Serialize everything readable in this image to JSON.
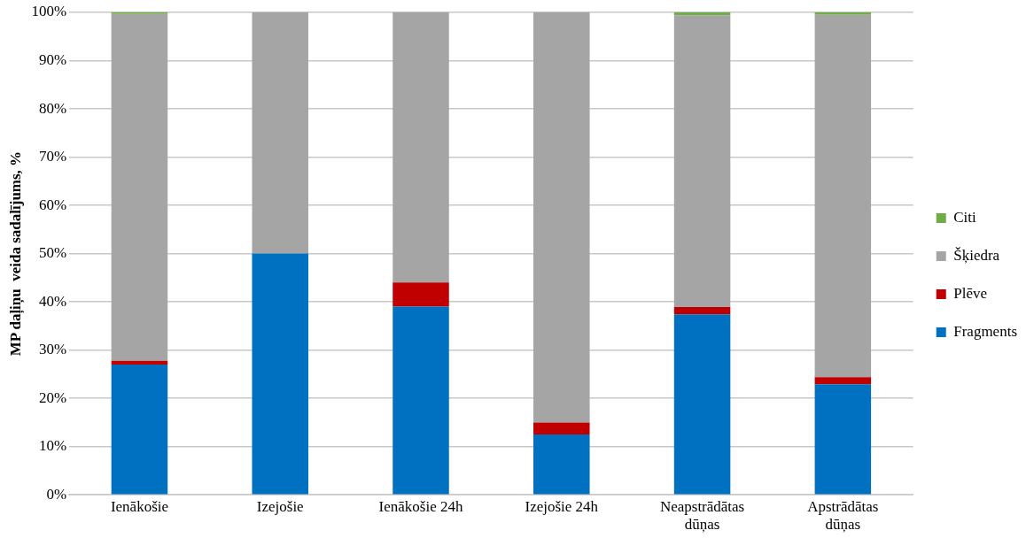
{
  "chart_data": {
    "type": "bar",
    "stacked": true,
    "ylabel": "MP daļiņu  veida sadalījums, %",
    "categories": [
      "Ienākošie",
      "Izejošie",
      "Ienākošie 24h",
      "Izejošie 24h",
      "Neapstrādātas dūņas",
      "Apstrādātas dūņas"
    ],
    "series": [
      {
        "name": "Fragments",
        "color": "#0070c0",
        "values": [
          27.0,
          50.0,
          39.0,
          12.5,
          37.4,
          22.9
        ]
      },
      {
        "name": "Plēve",
        "color": "#c00000",
        "values": [
          0.8,
          0,
          5.0,
          2.5,
          1.5,
          1.5
        ]
      },
      {
        "name": "Šķiedra",
        "color": "#a5a5a5",
        "values": [
          71.9,
          50.0,
          56.0,
          85.0,
          60.5,
          75.1
        ]
      },
      {
        "name": "Citi",
        "color": "#70ad47",
        "values": [
          0.3,
          0,
          0,
          0,
          0.6,
          0.5
        ]
      }
    ],
    "ylim": [
      0,
      100
    ],
    "yticks": [
      {
        "value": 0,
        "label": "0%"
      },
      {
        "value": 10,
        "label": "10%"
      },
      {
        "value": 20,
        "label": "20%"
      },
      {
        "value": 30,
        "label": "30%"
      },
      {
        "value": 40,
        "label": "40%"
      },
      {
        "value": 50,
        "label": "50%"
      },
      {
        "value": 60,
        "label": "60%"
      },
      {
        "value": 70,
        "label": "70%"
      },
      {
        "value": 80,
        "label": "80%"
      },
      {
        "value": 90,
        "label": "90%"
      },
      {
        "value": 100,
        "label": "100%"
      }
    ],
    "grid": "y",
    "legend": "right"
  }
}
